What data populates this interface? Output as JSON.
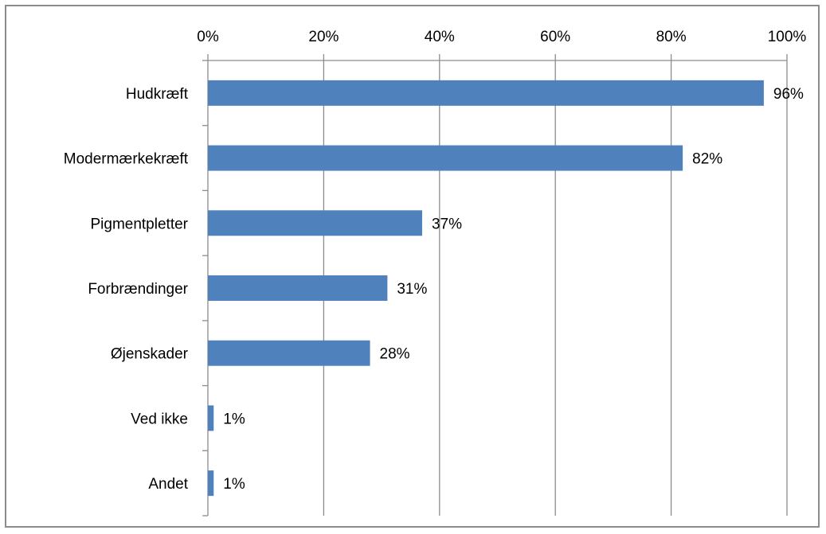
{
  "chart_data": {
    "type": "bar",
    "orientation": "horizontal",
    "categories": [
      "Hudkræft",
      "Modermærkekræft",
      "Pigmentpletter",
      "Forbrændinger",
      "Øjenskader",
      "Ved ikke",
      "Andet"
    ],
    "values": [
      96,
      82,
      37,
      31,
      28,
      1,
      1
    ],
    "value_labels": [
      "96%",
      "82%",
      "37%",
      "31%",
      "28%",
      "1%",
      "1%"
    ],
    "x_ticks": [
      "0%",
      "20%",
      "40%",
      "60%",
      "80%",
      "100%"
    ],
    "x_tick_values": [
      0,
      20,
      40,
      60,
      80,
      100
    ],
    "xlim": [
      0,
      100
    ],
    "x_axis_position": "top",
    "grid": true,
    "legend": "none",
    "title": "",
    "xlabel": "",
    "ylabel": "",
    "colors": {
      "bar": "#4f81bd",
      "grid": "#8c8c8c",
      "frame": "#8c8c8c"
    }
  }
}
